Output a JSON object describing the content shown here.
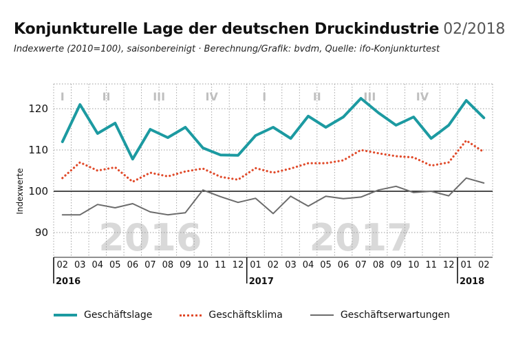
{
  "colors": {
    "lage": "#1c9aa1",
    "klima": "#e04a2a",
    "erwartungen": "#6b6b6b",
    "grid": "#999999",
    "watermark": "#d9d9d9",
    "quarter": "#bfbfbf"
  },
  "chart_data": {
    "type": "line",
    "title": "Konjunkturelle Lage der deutschen Druckindustrie",
    "title_date": "02/2018",
    "subtitle": "Indexwerte (2010=100), saisonbereinigt · Berechnung/Grafik: bvdm, Quelle: ifo-Konjunkturtest",
    "ylabel": "Indexwerte",
    "ylim": [
      84,
      126
    ],
    "yticks": [
      90,
      100,
      110,
      120
    ],
    "reference_line": 100,
    "x": [
      "02",
      "03",
      "04",
      "05",
      "06",
      "07",
      "08",
      "09",
      "10",
      "11",
      "12",
      "01",
      "02",
      "03",
      "04",
      "05",
      "06",
      "07",
      "08",
      "09",
      "10",
      "11",
      "12",
      "01",
      "02"
    ],
    "years": [
      {
        "label": "2016",
        "start_index": 0
      },
      {
        "label": "2017",
        "start_index": 11
      },
      {
        "label": "2018",
        "start_index": 23
      }
    ],
    "watermarks": [
      {
        "label": "2016",
        "center_index": 5
      },
      {
        "label": "2017",
        "center_index": 17
      }
    ],
    "quarters": [
      {
        "label": "I",
        "center_index": 0
      },
      {
        "label": "II",
        "center_index": 2.5
      },
      {
        "label": "III",
        "center_index": 5.5
      },
      {
        "label": "IV",
        "center_index": 8.5
      },
      {
        "label": "I",
        "center_index": 11.5
      },
      {
        "label": "II",
        "center_index": 14.5
      },
      {
        "label": "III",
        "center_index": 17.5
      },
      {
        "label": "IV",
        "center_index": 20.5
      }
    ],
    "series": [
      {
        "name": "Geschäftslage",
        "style": "solid-thick",
        "color_key": "lage",
        "values": [
          112,
          121,
          114,
          116.5,
          107.8,
          115,
          113,
          115.5,
          110.5,
          108.8,
          108.7,
          113.5,
          115.5,
          112.8,
          118.2,
          115.5,
          118,
          122.5,
          119,
          116,
          118,
          112.8,
          116,
          122,
          117.8
        ]
      },
      {
        "name": "Geschäftsklima",
        "style": "dotted",
        "color_key": "klima",
        "values": [
          103.2,
          107,
          105,
          105.8,
          102.3,
          104.5,
          103.6,
          104.8,
          105.5,
          103.5,
          102.8,
          105.6,
          104.5,
          105.5,
          106.8,
          106.8,
          107.5,
          110,
          109.2,
          108.5,
          108.2,
          106.2,
          107,
          112.3,
          109.5
        ]
      },
      {
        "name": "Geschäftserwartungen",
        "style": "solid-thin",
        "color_key": "erwartungen",
        "values": [
          94.3,
          94.3,
          96.8,
          96,
          97,
          95,
          94.3,
          94.8,
          100.3,
          98.7,
          97.3,
          98.3,
          94.6,
          98.8,
          96.4,
          98.8,
          98.2,
          98.6,
          100.3,
          101.2,
          99.7,
          100,
          98.9,
          103.2,
          102
        ]
      }
    ]
  },
  "legend": [
    {
      "label": "Geschäftslage",
      "color_key": "lage",
      "style": "solid-thick"
    },
    {
      "label": "Geschäftsklima",
      "color_key": "klima",
      "style": "dotted"
    },
    {
      "label": "Geschäftserwartungen",
      "color_key": "erwartungen",
      "style": "solid-thin"
    }
  ]
}
